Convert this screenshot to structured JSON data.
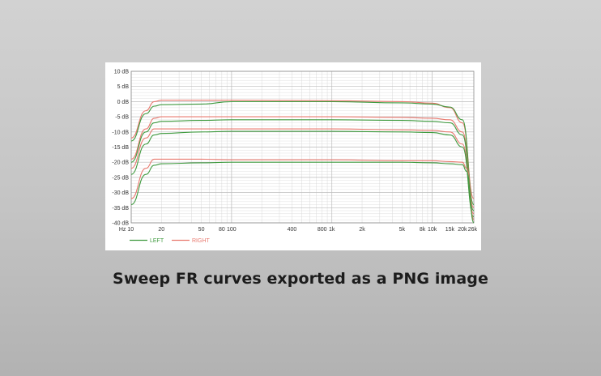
{
  "caption": "Sweep FR curves exported as a PNG image",
  "colors": {
    "left": "#3f9a3f",
    "right": "#e8786e",
    "grid": "#d9d9d9",
    "frame": "#8c8c8c"
  },
  "chart_data": {
    "type": "line",
    "x_scale": "log",
    "xlim": [
      10,
      26000
    ],
    "ylim": [
      -40,
      10
    ],
    "grid": true,
    "legend_position": "bottom-left",
    "x_tick_labels": [
      {
        "v": 10,
        "label": "Hz 10"
      },
      {
        "v": 20,
        "label": "20"
      },
      {
        "v": 50,
        "label": "50"
      },
      {
        "v": 80,
        "label": "80"
      },
      {
        "v": 100,
        "label": "100"
      },
      {
        "v": 400,
        "label": "400"
      },
      {
        "v": 800,
        "label": "800"
      },
      {
        "v": 1000,
        "label": "1k"
      },
      {
        "v": 2000,
        "label": "2k"
      },
      {
        "v": 5000,
        "label": "5k"
      },
      {
        "v": 8000,
        "label": "8k"
      },
      {
        "v": 10000,
        "label": "10k"
      },
      {
        "v": 15000,
        "label": "15k"
      },
      {
        "v": 20000,
        "label": "20k"
      },
      {
        "v": 26000,
        "label": "26k"
      }
    ],
    "y_tick_labels": [
      {
        "v": 10,
        "label": "10 dB"
      },
      {
        "v": 5,
        "label": "5 dB"
      },
      {
        "v": 0,
        "label": "0 dB"
      },
      {
        "v": -5,
        "label": "-5 dB"
      },
      {
        "v": -10,
        "label": "-10 dB"
      },
      {
        "v": -15,
        "label": "-15 dB"
      },
      {
        "v": -20,
        "label": "-20 dB"
      },
      {
        "v": -25,
        "label": "-25 dB"
      },
      {
        "v": -30,
        "label": "-30 dB"
      },
      {
        "v": -35,
        "label": "-35 dB"
      },
      {
        "v": -40,
        "label": "-40 dB"
      }
    ],
    "legend": [
      {
        "label": "LEFT",
        "channel": "left"
      },
      {
        "label": "RIGHT",
        "channel": "right"
      }
    ],
    "series": [
      {
        "channel": "right",
        "points": [
          [
            10,
            -12
          ],
          [
            14,
            -3
          ],
          [
            17,
            0
          ],
          [
            20,
            0.5
          ],
          [
            40,
            0.5
          ],
          [
            100,
            0.5
          ],
          [
            1000,
            0.3
          ],
          [
            5000,
            0
          ],
          [
            10000,
            -0.5
          ],
          [
            15000,
            -2
          ],
          [
            20000,
            -7
          ],
          [
            26000,
            -32
          ]
        ]
      },
      {
        "channel": "left",
        "points": [
          [
            10,
            -13
          ],
          [
            14,
            -4
          ],
          [
            17,
            -1.5
          ],
          [
            20,
            -1
          ],
          [
            50,
            -0.8
          ],
          [
            100,
            0
          ],
          [
            1000,
            0
          ],
          [
            5000,
            -0.4
          ],
          [
            10000,
            -0.8
          ],
          [
            15000,
            -1.8
          ],
          [
            20000,
            -6
          ],
          [
            26000,
            -34
          ]
        ]
      },
      {
        "channel": "right",
        "points": [
          [
            10,
            -19
          ],
          [
            14,
            -9
          ],
          [
            17,
            -5.5
          ],
          [
            20,
            -5
          ],
          [
            50,
            -5
          ],
          [
            100,
            -5
          ],
          [
            1000,
            -5
          ],
          [
            5000,
            -5.2
          ],
          [
            10000,
            -5.5
          ],
          [
            15000,
            -6
          ],
          [
            20000,
            -10
          ],
          [
            26000,
            -35
          ]
        ]
      },
      {
        "channel": "left",
        "points": [
          [
            10,
            -20
          ],
          [
            14,
            -10
          ],
          [
            17,
            -7
          ],
          [
            20,
            -6.5
          ],
          [
            50,
            -6.2
          ],
          [
            100,
            -6
          ],
          [
            1000,
            -6
          ],
          [
            5000,
            -6.2
          ],
          [
            10000,
            -6.5
          ],
          [
            15000,
            -7
          ],
          [
            20000,
            -11
          ],
          [
            26000,
            -36
          ]
        ]
      },
      {
        "channel": "right",
        "points": [
          [
            10,
            -22
          ],
          [
            14,
            -12
          ],
          [
            17,
            -9
          ],
          [
            20,
            -9
          ],
          [
            50,
            -9
          ],
          [
            100,
            -9
          ],
          [
            1000,
            -9
          ],
          [
            5000,
            -9.3
          ],
          [
            10000,
            -9.5
          ],
          [
            15000,
            -10
          ],
          [
            20000,
            -14
          ],
          [
            26000,
            -37
          ]
        ]
      },
      {
        "channel": "left",
        "points": [
          [
            10,
            -24
          ],
          [
            14,
            -14
          ],
          [
            17,
            -11
          ],
          [
            20,
            -10.5
          ],
          [
            50,
            -10
          ],
          [
            100,
            -9.8
          ],
          [
            1000,
            -9.8
          ],
          [
            5000,
            -10
          ],
          [
            10000,
            -10.2
          ],
          [
            15000,
            -11
          ],
          [
            20000,
            -15
          ],
          [
            26000,
            -38
          ]
        ]
      },
      {
        "channel": "right",
        "points": [
          [
            10,
            -32
          ],
          [
            14,
            -22
          ],
          [
            17,
            -19
          ],
          [
            20,
            -19
          ],
          [
            50,
            -19
          ],
          [
            100,
            -19.2
          ],
          [
            1000,
            -19.2
          ],
          [
            5000,
            -19.5
          ],
          [
            10000,
            -19.5
          ],
          [
            15000,
            -19.8
          ],
          [
            20000,
            -20
          ],
          [
            22000,
            -22
          ],
          [
            26000,
            -39
          ]
        ]
      },
      {
        "channel": "left",
        "points": [
          [
            10,
            -34
          ],
          [
            14,
            -24
          ],
          [
            17,
            -21
          ],
          [
            20,
            -20.5
          ],
          [
            50,
            -20.2
          ],
          [
            100,
            -20
          ],
          [
            1000,
            -20
          ],
          [
            5000,
            -20
          ],
          [
            10000,
            -20.2
          ],
          [
            15000,
            -20.5
          ],
          [
            20000,
            -20.8
          ],
          [
            22000,
            -23
          ],
          [
            26000,
            -40
          ]
        ]
      }
    ]
  }
}
